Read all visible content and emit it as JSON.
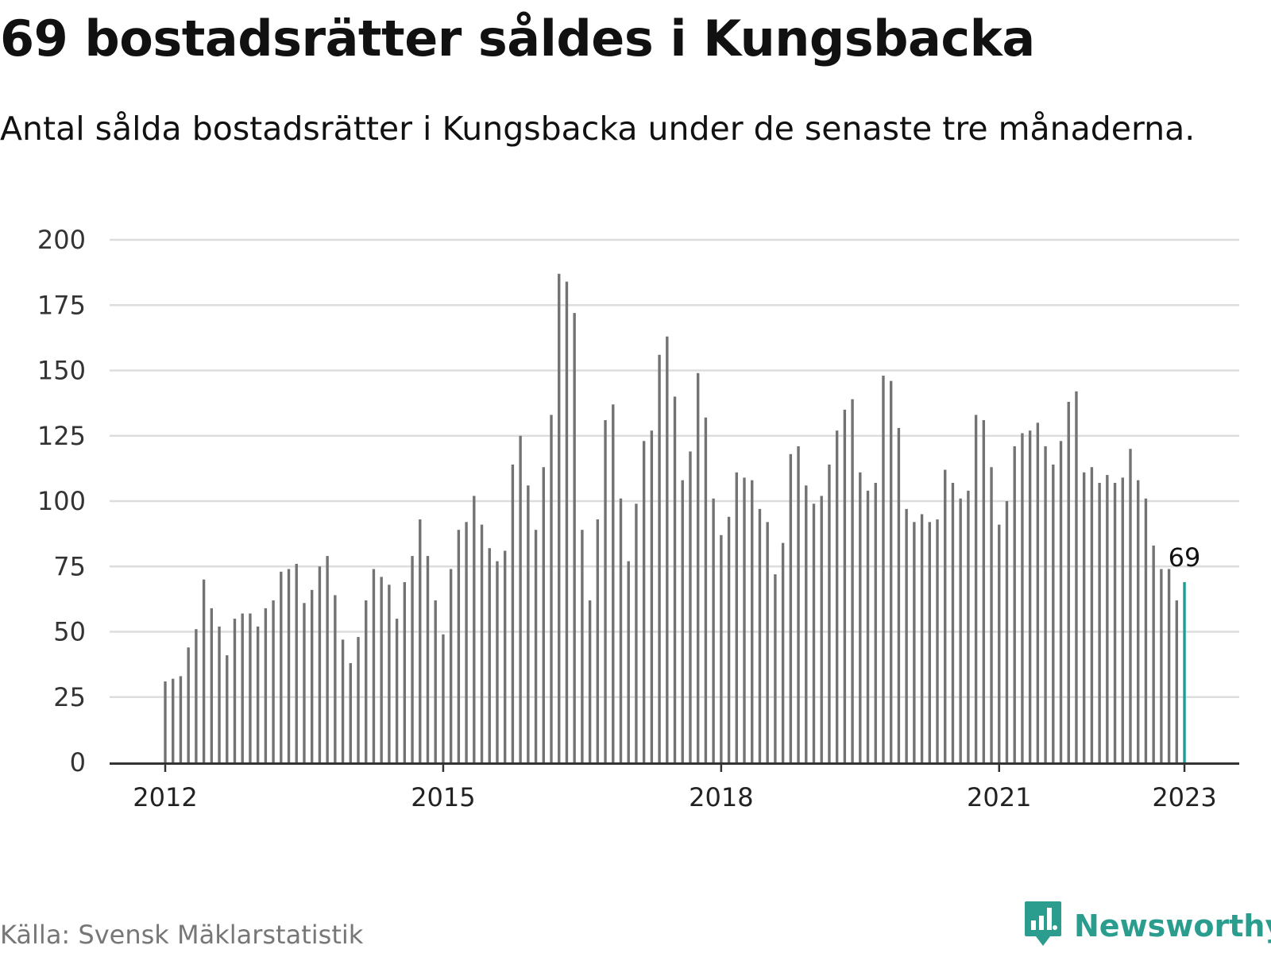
{
  "title": "69 bostadsrätter såldes i Kungsbacka",
  "subtitle": "Antal sålda bostadsrätter i Kungsbacka under de senaste tre månaderna.",
  "source": "Källa: Svensk Mäklarstatistik",
  "brand": {
    "name": "Newsworthy",
    "icon": "newsworthy-logo-icon",
    "color": "#2a9d8f"
  },
  "colors": {
    "bar": "#737373",
    "highlight": "#1a9e95",
    "grid": "#dddddd",
    "axis": "#333333"
  },
  "chart_data": {
    "type": "bar",
    "title": "69 bostadsrätter såldes i Kungsbacka",
    "subtitle": "Antal sålda bostadsrätter i Kungsbacka under de senaste tre månaderna.",
    "xlabel": "",
    "ylabel": "",
    "ylim": [
      0,
      200
    ],
    "yticks": [
      0,
      25,
      50,
      75,
      100,
      125,
      150,
      175,
      200
    ],
    "xtick_labels": [
      "2012",
      "2015",
      "2018",
      "2021",
      "2023"
    ],
    "x_start": "2012-01",
    "frequency": "monthly",
    "grid": true,
    "highlight_last": true,
    "last_label": "69",
    "values": [
      31,
      32,
      33,
      44,
      51,
      70,
      59,
      52,
      41,
      55,
      57,
      57,
      52,
      59,
      62,
      73,
      74,
      76,
      61,
      66,
      75,
      79,
      64,
      47,
      38,
      48,
      62,
      74,
      71,
      68,
      55,
      69,
      79,
      93,
      79,
      62,
      49,
      74,
      89,
      92,
      102,
      91,
      82,
      77,
      81,
      114,
      125,
      106,
      89,
      113,
      133,
      187,
      184,
      172,
      89,
      62,
      93,
      131,
      137,
      101,
      77,
      99,
      123,
      127,
      156,
      163,
      140,
      108,
      119,
      149,
      132,
      101,
      87,
      94,
      111,
      109,
      108,
      97,
      92,
      72,
      84,
      118,
      121,
      106,
      99,
      102,
      114,
      127,
      135,
      139,
      111,
      104,
      107,
      148,
      146,
      128,
      97,
      92,
      95,
      92,
      93,
      112,
      107,
      101,
      104,
      133,
      131,
      113,
      91,
      100,
      121,
      126,
      127,
      130,
      121,
      114,
      123,
      138,
      142,
      111,
      113,
      107,
      110,
      107,
      109,
      120,
      108,
      101,
      83,
      74,
      74,
      62,
      69
    ]
  }
}
